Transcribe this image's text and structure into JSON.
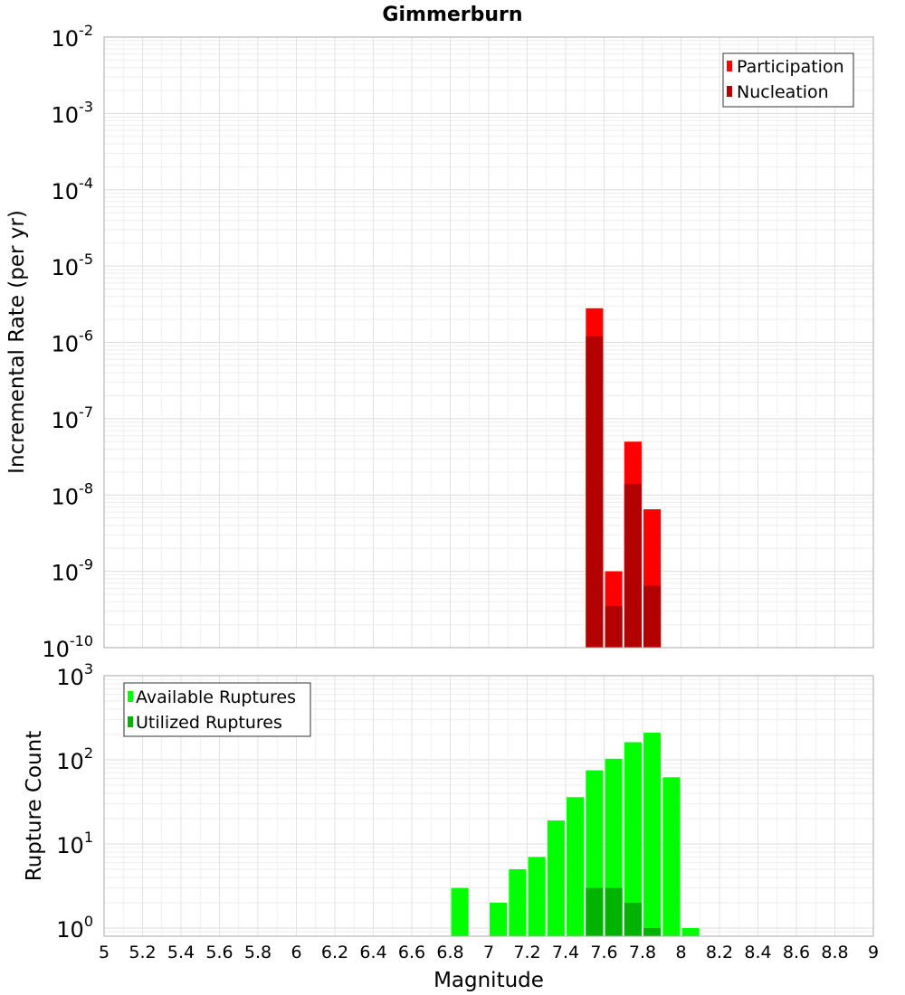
{
  "title": "Gimmerburn",
  "x_axis": {
    "label": "Magnitude",
    "range": [
      5,
      9
    ],
    "tick_labels": [
      "5",
      "5.2",
      "5.4",
      "5.6",
      "5.8",
      "6",
      "6.2",
      "6.4",
      "6.6",
      "6.8",
      "7",
      "7.2",
      "7.4",
      "7.6",
      "7.8",
      "8",
      "8.2",
      "8.4",
      "8.6",
      "8.8",
      "9"
    ]
  },
  "chart_data": [
    {
      "type": "bar",
      "ylabel": "Incremental Rate (per yr)",
      "xlabel": "Magnitude",
      "yscale": "log",
      "ylim": [
        1e-10,
        0.01
      ],
      "xlim": [
        5,
        9
      ],
      "grid": true,
      "legend_position": "top-right",
      "y_tick_labels": [
        {
          "base": "10",
          "exp": "-10"
        },
        {
          "base": "10",
          "exp": "-9"
        },
        {
          "base": "10",
          "exp": "-8"
        },
        {
          "base": "10",
          "exp": "-7"
        },
        {
          "base": "10",
          "exp": "-6"
        },
        {
          "base": "10",
          "exp": "-5"
        },
        {
          "base": "10",
          "exp": "-4"
        },
        {
          "base": "10",
          "exp": "-3"
        },
        {
          "base": "10",
          "exp": "-2"
        }
      ],
      "series": [
        {
          "name": "Participation",
          "color": "#ff0000",
          "x": [
            7.55,
            7.65,
            7.75,
            7.85
          ],
          "values": [
            2.8e-06,
            1e-09,
            5e-08,
            6.5e-09
          ]
        },
        {
          "name": "Nucleation",
          "color": "#b30000",
          "x": [
            7.55,
            7.65,
            7.75,
            7.85
          ],
          "values": [
            1.2e-06,
            3.5e-10,
            1.4e-08,
            6.5e-10
          ]
        }
      ]
    },
    {
      "type": "bar",
      "ylabel": "Rupture Count",
      "xlabel": "Magnitude",
      "yscale": "log",
      "ylim": [
        0.8,
        1000
      ],
      "xlim": [
        5,
        9
      ],
      "grid": true,
      "legend_position": "top-left",
      "y_tick_labels": [
        {
          "base": "10",
          "exp": "0"
        },
        {
          "base": "10",
          "exp": "1"
        },
        {
          "base": "10",
          "exp": "2"
        },
        {
          "base": "10",
          "exp": "3"
        }
      ],
      "series": [
        {
          "name": "Available Ruptures",
          "color": "#00ff00",
          "x": [
            6.85,
            7.05,
            7.15,
            7.25,
            7.35,
            7.45,
            7.55,
            7.65,
            7.75,
            7.85,
            7.95,
            8.05
          ],
          "values": [
            3,
            2,
            5,
            7,
            19,
            36,
            75,
            103,
            162,
            210,
            62,
            1
          ]
        },
        {
          "name": "Utilized Ruptures",
          "color": "#00b300",
          "x": [
            7.55,
            7.65,
            7.75,
            7.85
          ],
          "values": [
            3,
            3,
            2,
            1
          ]
        }
      ]
    }
  ]
}
